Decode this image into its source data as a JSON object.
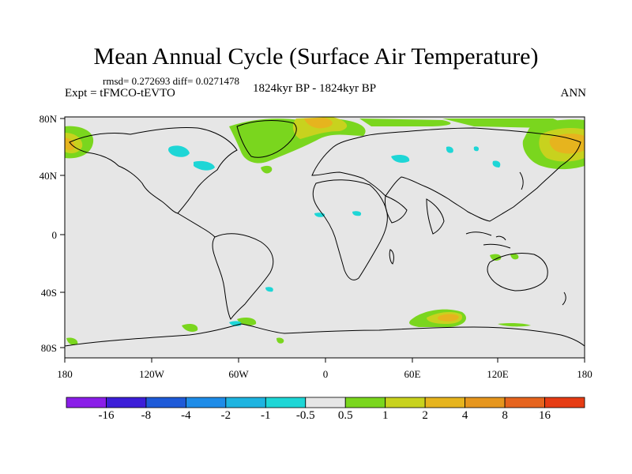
{
  "title": "Mean Annual Cycle (Surface Air Temperature)",
  "stats": "rmsd= 0.272693 diff= 0.0271478",
  "experiment": "Expt = tFMCO-tEVTO",
  "period": "1824kyr BP - 1824kyr BP",
  "season": "ANN",
  "lat_ticks": [
    "80N",
    "40N",
    "0",
    "40S",
    "80S"
  ],
  "lon_ticks": [
    "180",
    "120W",
    "60W",
    "0",
    "60E",
    "120E",
    "180"
  ],
  "colorbar": {
    "labels": [
      "-16",
      "-8",
      "-4",
      "-2",
      "-1",
      "-0.5",
      "0.5",
      "1",
      "2",
      "4",
      "8",
      "16"
    ],
    "colors": [
      "#8a1ee8",
      "#3c1ed8",
      "#1e5ad8",
      "#1e8ce8",
      "#1eb4e0",
      "#1ed6d6",
      "#e6e6e6",
      "#7ad61e",
      "#c8d21e",
      "#e6b41e",
      "#e6961e",
      "#e6641e",
      "#e63c14"
    ]
  },
  "palette": {
    "background": "#e6e6e6",
    "warm_low": "#7ad61e",
    "warm_mid": "#c8d21e",
    "warm_high": "#e6b41e",
    "cool": "#1ed6d6"
  }
}
